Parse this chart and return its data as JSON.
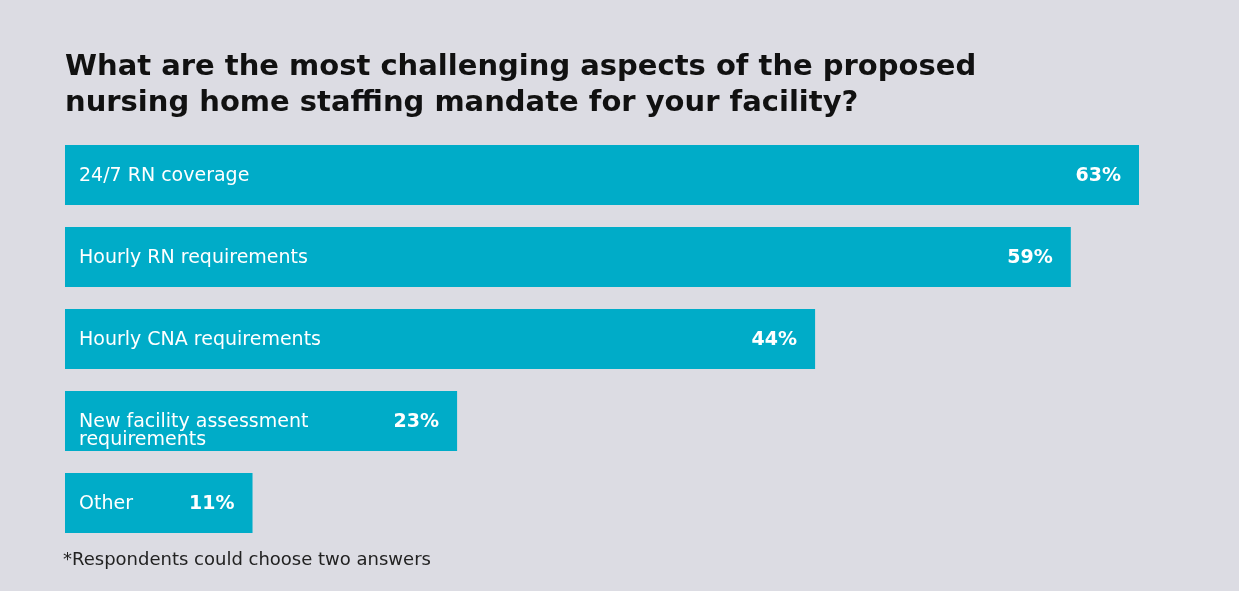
{
  "chart_data": {
    "type": "bar",
    "orientation": "horizontal",
    "title": [
      "What are the most challenging aspects of the proposed",
      "nursing home staffing mandate for your facility?"
    ],
    "categories": [
      "24/7 RN coverage",
      "Hourly RN requirements",
      "Hourly CNA requirements",
      "New facility assessment requirements",
      "Other"
    ],
    "values": [
      63,
      59,
      44,
      23,
      11
    ],
    "value_labels": [
      "63%",
      "59%",
      "44%",
      "23%",
      "11%"
    ],
    "color": "#00acc8",
    "tick_labels": false,
    "grid": false,
    "annotations": [
      "*Respondents could choose two answers"
    ]
  }
}
